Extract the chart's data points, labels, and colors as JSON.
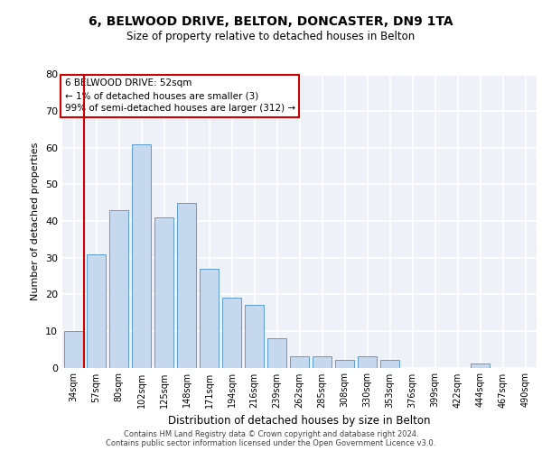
{
  "title_line1": "6, BELWOOD DRIVE, BELTON, DONCASTER, DN9 1TA",
  "title_line2": "Size of property relative to detached houses in Belton",
  "xlabel": "Distribution of detached houses by size in Belton",
  "ylabel": "Number of detached properties",
  "categories": [
    "34sqm",
    "57sqm",
    "80sqm",
    "102sqm",
    "125sqm",
    "148sqm",
    "171sqm",
    "194sqm",
    "216sqm",
    "239sqm",
    "262sqm",
    "285sqm",
    "308sqm",
    "330sqm",
    "353sqm",
    "376sqm",
    "399sqm",
    "422sqm",
    "444sqm",
    "467sqm",
    "490sqm"
  ],
  "values": [
    10,
    31,
    43,
    61,
    41,
    45,
    27,
    19,
    17,
    8,
    3,
    3,
    2,
    3,
    2,
    0,
    0,
    0,
    1,
    0,
    0
  ],
  "bar_color": "#c5d8ed",
  "bar_edge_color": "#5b9bd5",
  "highlight_color": "#cc0000",
  "annotation_line1": "6 BELWOOD DRIVE: 52sqm",
  "annotation_line2": "← 1% of detached houses are smaller (3)",
  "annotation_line3": "99% of semi-detached houses are larger (312) →",
  "annotation_box_color": "#ffffff",
  "annotation_box_edge": "#cc0000",
  "ylim": [
    0,
    80
  ],
  "yticks": [
    0,
    10,
    20,
    30,
    40,
    50,
    60,
    70,
    80
  ],
  "footer_line1": "Contains HM Land Registry data © Crown copyright and database right 2024.",
  "footer_line2": "Contains public sector information licensed under the Open Government Licence v3.0.",
  "background_color": "#eef2f8",
  "grid_color": "#ffffff",
  "fig_bg": "#ffffff"
}
